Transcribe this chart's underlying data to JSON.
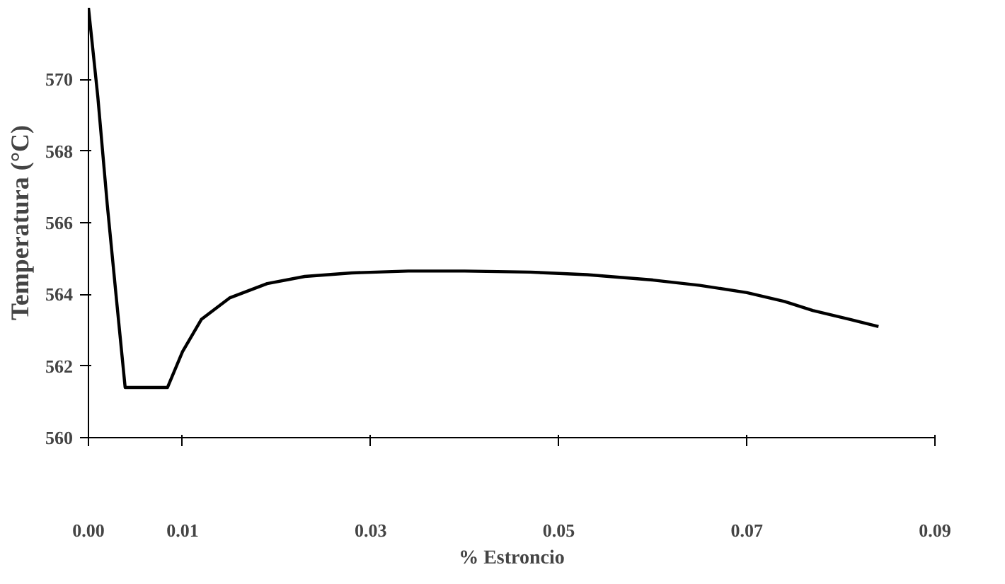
{
  "chart_data": {
    "type": "line",
    "xlabel": "% Estroncio",
    "ylabel": "Temperatura (°C)",
    "x": [
      0.0,
      0.001,
      0.002,
      0.003,
      0.0039,
      0.0084,
      0.01,
      0.012,
      0.015,
      0.019,
      0.023,
      0.028,
      0.034,
      0.04,
      0.047,
      0.053,
      0.06,
      0.065,
      0.07,
      0.074,
      0.077,
      0.081,
      0.084
    ],
    "values": [
      572.0,
      569.5,
      566.5,
      563.8,
      561.4,
      561.4,
      562.4,
      563.3,
      563.9,
      564.3,
      564.5,
      564.6,
      564.65,
      564.65,
      564.62,
      564.55,
      564.4,
      564.25,
      564.05,
      563.8,
      563.55,
      563.3,
      563.1
    ],
    "color": "#000000",
    "xlim": [
      0.0,
      0.09
    ],
    "ylim": [
      560,
      572
    ],
    "xticks": [
      {
        "value": 0.0,
        "label": "0.00"
      },
      0.01,
      0.03,
      0.05,
      0.07,
      0.09
    ],
    "yticks": [
      560,
      562,
      564,
      566,
      568,
      570
    ],
    "grid": false,
    "marker": "none",
    "line_style": "solid"
  }
}
